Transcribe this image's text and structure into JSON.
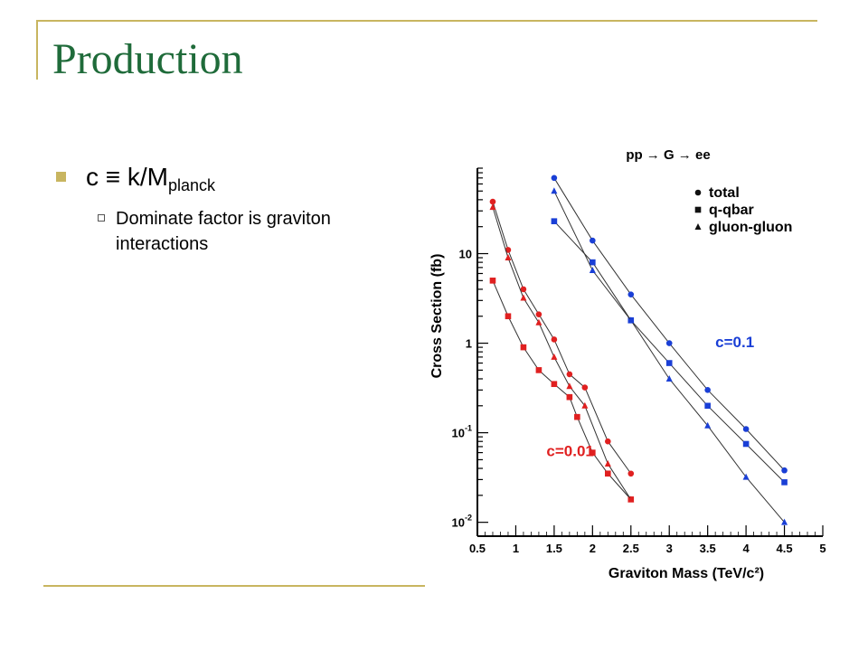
{
  "slide": {
    "title": "Production",
    "bullet": {
      "prefix": "c ≡ k/M",
      "subscript": "planck"
    },
    "sub_bullet": "Dominate factor is graviton interactions"
  },
  "chart_data": {
    "type": "scatter",
    "title": "pp → G → ee",
    "xlabel": "Graviton Mass (TeV/c²)",
    "ylabel": "Cross Section (fb)",
    "xlim": [
      0.5,
      5
    ],
    "ylim": [
      0.007,
      90
    ],
    "yscale": "log",
    "x_ticks": [
      "0.5",
      "1",
      "1.5",
      "2",
      "2.5",
      "3",
      "3.5",
      "4",
      "4.5",
      "5"
    ],
    "y_ticks": [
      {
        "value": 10,
        "base": "10",
        "exp": ""
      },
      {
        "value": 1,
        "base": "1",
        "exp": ""
      },
      {
        "value": 0.1,
        "base": "10",
        "exp": "-1"
      },
      {
        "value": 0.01,
        "base": "10",
        "exp": "-2"
      }
    ],
    "legend": {
      "placement": "top-right",
      "entries": [
        {
          "label": "total",
          "marker": "circle"
        },
        {
          "label": "q-qbar",
          "marker": "square"
        },
        {
          "label": "gluon-gluon",
          "marker": "triangle"
        }
      ]
    },
    "annotations": [
      {
        "text": "c=0.1",
        "color": "#1a3fd6"
      },
      {
        "text": "c=0.01",
        "color": "#e02020"
      }
    ],
    "series": [
      {
        "group": "c=0.01",
        "name": "total",
        "color": "#e02020",
        "marker": "circle",
        "x": [
          0.7,
          0.9,
          1.1,
          1.3,
          1.5,
          1.7,
          1.9,
          2.2,
          2.5
        ],
        "y": [
          38,
          11,
          4,
          2.1,
          1.1,
          0.45,
          0.32,
          0.08,
          0.035
        ]
      },
      {
        "group": "c=0.01",
        "name": "q-qbar",
        "color": "#e02020",
        "marker": "square",
        "x": [
          0.7,
          0.9,
          1.1,
          1.3,
          1.5,
          1.7,
          1.8,
          2.0,
          2.2,
          2.5
        ],
        "y": [
          5,
          2,
          0.9,
          0.5,
          0.35,
          0.25,
          0.15,
          0.06,
          0.035,
          0.018
        ]
      },
      {
        "group": "c=0.01",
        "name": "gluon-gluon",
        "color": "#e02020",
        "marker": "triangle",
        "x": [
          0.7,
          0.9,
          1.1,
          1.3,
          1.5,
          1.7,
          1.9,
          2.2,
          2.5
        ],
        "y": [
          33,
          9,
          3.2,
          1.7,
          0.7,
          0.33,
          0.2,
          0.045,
          0.018
        ]
      },
      {
        "group": "c=0.1",
        "name": "total",
        "color": "#1a3fd6",
        "marker": "circle",
        "x": [
          1.5,
          2.0,
          2.5,
          3.0,
          3.5,
          4.0,
          4.5
        ],
        "y": [
          70,
          14,
          3.5,
          1.0,
          0.3,
          0.11,
          0.038
        ]
      },
      {
        "group": "c=0.1",
        "name": "q-qbar",
        "color": "#1a3fd6",
        "marker": "square",
        "x": [
          1.5,
          2.0,
          2.5,
          3.0,
          3.5,
          4.0,
          4.5
        ],
        "y": [
          23,
          8,
          1.8,
          0.6,
          0.2,
          0.075,
          0.028
        ]
      },
      {
        "group": "c=0.1",
        "name": "gluon-gluon",
        "color": "#1a3fd6",
        "marker": "triangle",
        "x": [
          1.5,
          2.0,
          2.5,
          3.0,
          3.5,
          4.0,
          4.5
        ],
        "y": [
          50,
          6.5,
          1.8,
          0.4,
          0.12,
          0.032,
          0.01
        ]
      }
    ]
  }
}
